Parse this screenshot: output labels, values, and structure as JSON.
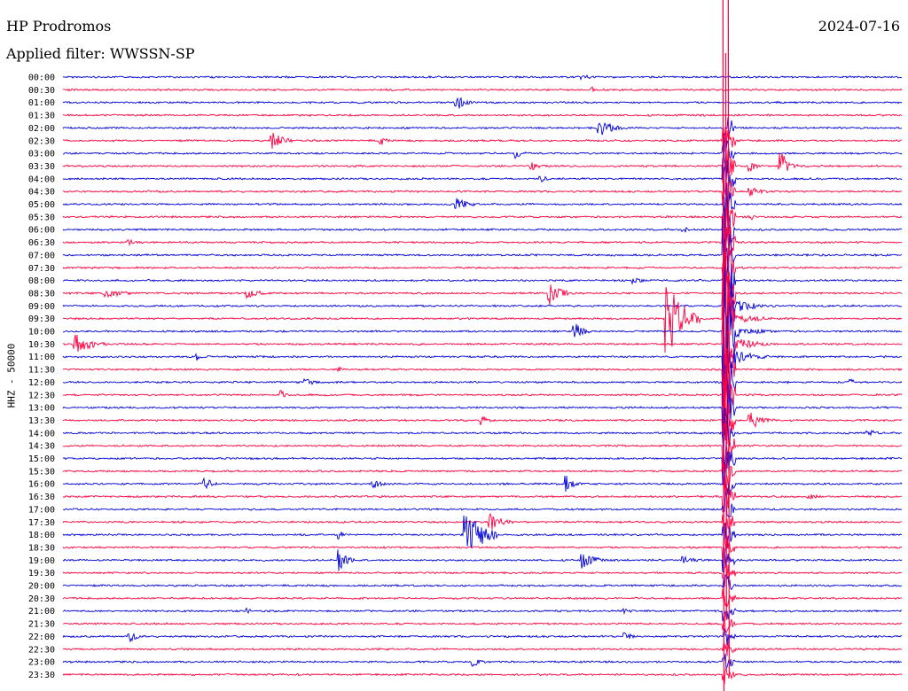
{
  "header": {
    "station": "HP Prodromos",
    "date": "2024-07-16",
    "filter": "Applied filter: WWSSN-SP",
    "axis_label": "HHZ - 50000"
  },
  "colors": {
    "blue": "#0000d8",
    "red": "#ff0040",
    "text": "#000000"
  },
  "chart_data": {
    "type": "line",
    "title": "HP Prodromos",
    "ylabel": "HHZ - 50000",
    "row_labels": [
      "00:00",
      "00:30",
      "01:00",
      "01:30",
      "02:00",
      "02:30",
      "03:00",
      "03:30",
      "04:00",
      "04:30",
      "05:00",
      "05:30",
      "06:00",
      "06:30",
      "07:00",
      "07:30",
      "08:00",
      "08:30",
      "09:00",
      "09:30",
      "10:00",
      "10:30",
      "11:00",
      "11:30",
      "12:00",
      "12:30",
      "13:00",
      "13:30",
      "14:00",
      "14:30",
      "15:00",
      "15:30",
      "16:00",
      "16:30",
      "17:00",
      "17:30",
      "18:00",
      "18:30",
      "19:00",
      "19:30",
      "20:00",
      "20:30",
      "21:00",
      "21:30",
      "22:00",
      "22:30",
      "23:00",
      "23:30"
    ],
    "series_colors_alternating": [
      "blue",
      "red"
    ],
    "events": [
      {
        "row": 0,
        "pos": 0.62,
        "amp": 3,
        "dur": 0.03
      },
      {
        "row": 1,
        "pos": 0.63,
        "amp": 4,
        "dur": 0.02
      },
      {
        "row": 2,
        "pos": 0.47,
        "amp": 9,
        "dur": 0.02
      },
      {
        "row": 4,
        "pos": 0.64,
        "amp": 12,
        "dur": 0.03
      },
      {
        "row": 5,
        "pos": 0.25,
        "amp": 10,
        "dur": 0.03
      },
      {
        "row": 5,
        "pos": 0.38,
        "amp": 6,
        "dur": 0.015
      },
      {
        "row": 6,
        "pos": 0.54,
        "amp": 6,
        "dur": 0.02
      },
      {
        "row": 7,
        "pos": 0.56,
        "amp": 5,
        "dur": 0.02
      },
      {
        "row": 7,
        "pos": 0.82,
        "amp": 7,
        "dur": 0.015
      },
      {
        "row": 7,
        "pos": 0.856,
        "amp": 18,
        "dur": 0.02
      },
      {
        "row": 8,
        "pos": 0.57,
        "amp": 4,
        "dur": 0.02
      },
      {
        "row": 9,
        "pos": 0.82,
        "amp": 6,
        "dur": 0.03
      },
      {
        "row": 10,
        "pos": 0.47,
        "amp": 7,
        "dur": 0.03
      },
      {
        "row": 11,
        "pos": 0.82,
        "amp": 5,
        "dur": 0.01
      },
      {
        "row": 12,
        "pos": 0.74,
        "amp": 4,
        "dur": 0.03
      },
      {
        "row": 13,
        "pos": 0.08,
        "amp": 3,
        "dur": 0.04
      },
      {
        "row": 16,
        "pos": 0.68,
        "amp": 4,
        "dur": 0.03
      },
      {
        "row": 17,
        "pos": 0.05,
        "amp": 5,
        "dur": 0.06
      },
      {
        "row": 17,
        "pos": 0.22,
        "amp": 7,
        "dur": 0.03
      },
      {
        "row": 17,
        "pos": 0.58,
        "amp": 14,
        "dur": 0.03
      },
      {
        "row": 19,
        "pos": 0.72,
        "amp": 45,
        "dur": 0.04
      },
      {
        "row": 20,
        "pos": 0.61,
        "amp": 12,
        "dur": 0.02
      },
      {
        "row": 21,
        "pos": 0.015,
        "amp": 12,
        "dur": 0.04
      },
      {
        "row": 22,
        "pos": 0.16,
        "amp": 5,
        "dur": 0.01
      },
      {
        "row": 23,
        "pos": 0.33,
        "amp": 3,
        "dur": 0.01
      },
      {
        "row": 24,
        "pos": 0.29,
        "amp": 5,
        "dur": 0.02
      },
      {
        "row": 24,
        "pos": 0.94,
        "amp": 4,
        "dur": 0.01
      },
      {
        "row": 25,
        "pos": 0.26,
        "amp": 6,
        "dur": 0.015
      },
      {
        "row": 27,
        "pos": 0.5,
        "amp": 6,
        "dur": 0.02
      },
      {
        "row": 27,
        "pos": 0.82,
        "amp": 11,
        "dur": 0.03
      },
      {
        "row": 28,
        "pos": 0.96,
        "amp": 4,
        "dur": 0.03
      },
      {
        "row": 32,
        "pos": 0.17,
        "amp": 7,
        "dur": 0.02
      },
      {
        "row": 32,
        "pos": 0.37,
        "amp": 6,
        "dur": 0.02
      },
      {
        "row": 32,
        "pos": 0.6,
        "amp": 11,
        "dur": 0.02
      },
      {
        "row": 33,
        "pos": 0.89,
        "amp": 5,
        "dur": 0.02
      },
      {
        "row": 35,
        "pos": 0.51,
        "amp": 10,
        "dur": 0.03
      },
      {
        "row": 36,
        "pos": 0.48,
        "amp": 34,
        "dur": 0.04
      },
      {
        "row": 36,
        "pos": 0.33,
        "amp": 6,
        "dur": 0.01
      },
      {
        "row": 38,
        "pos": 0.33,
        "amp": 12,
        "dur": 0.02
      },
      {
        "row": 38,
        "pos": 0.62,
        "amp": 10,
        "dur": 0.03
      },
      {
        "row": 38,
        "pos": 0.74,
        "amp": 4,
        "dur": 0.05
      },
      {
        "row": 42,
        "pos": 0.22,
        "amp": 4,
        "dur": 0.01
      },
      {
        "row": 42,
        "pos": 0.67,
        "amp": 3,
        "dur": 0.02
      },
      {
        "row": 44,
        "pos": 0.08,
        "amp": 6,
        "dur": 0.02
      },
      {
        "row": 44,
        "pos": 0.67,
        "amp": 5,
        "dur": 0.02
      },
      {
        "row": 46,
        "pos": 0.49,
        "amp": 5,
        "dur": 0.02
      }
    ],
    "major_event": {
      "start_row": 4,
      "end_row": 47,
      "peak_row": 19,
      "pos": 0.79,
      "amp": 70
    }
  }
}
